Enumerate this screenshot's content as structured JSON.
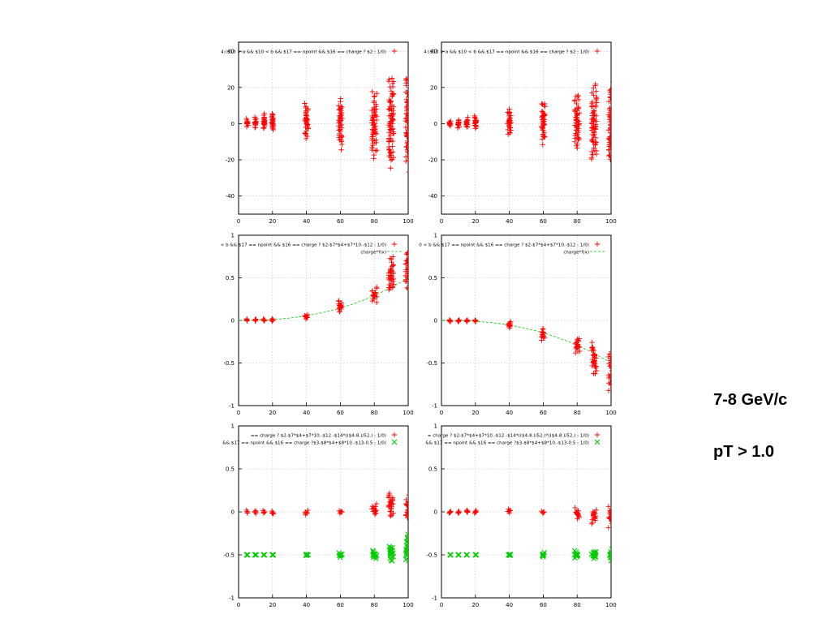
{
  "slide": {
    "energy_label": "7-8 GeV/c",
    "cut_label": "pT > 1.0"
  },
  "colors": {
    "series_red": "#ff0000",
    "series_green": "#00cc00",
    "grid": "#bbbbbb"
  },
  "chart_data": [
    {
      "type": "scatter",
      "row": 0,
      "col": 0,
      "xlim": [
        0,
        100
      ],
      "ylim": [
        -50,
        45
      ],
      "xticks": [
        0,
        20,
        40,
        60,
        80,
        100
      ],
      "yticks": [
        -40,
        -20,
        0,
        20,
        40
      ],
      "legend": [
        {
          "text": "4:($10 > a && $10 < b && $17 == npoint && $16 == charge ? $2 : 1/0)",
          "marker": "plus",
          "color": "red"
        }
      ],
      "series": [
        {
          "marker": "plus",
          "color": "red",
          "columns": [
            {
              "x": 5,
              "min": -2,
              "max": 3
            },
            {
              "x": 10,
              "min": -3,
              "max": 4
            },
            {
              "x": 15,
              "min": -4,
              "max": 6
            },
            {
              "x": 20,
              "min": -5,
              "max": 7
            },
            {
              "x": 40,
              "min": -10,
              "max": 12
            },
            {
              "x": 60,
              "min": -15,
              "max": 15
            },
            {
              "x": 80,
              "min": -20,
              "max": 18
            },
            {
              "x": 90,
              "min": -25,
              "max": 27
            },
            {
              "x": 100,
              "min": -27,
              "max": 30
            }
          ]
        }
      ]
    },
    {
      "type": "scatter",
      "row": 0,
      "col": 1,
      "xlim": [
        0,
        100
      ],
      "ylim": [
        -50,
        45
      ],
      "xticks": [
        0,
        20,
        40,
        60,
        80,
        100
      ],
      "yticks": [
        -40,
        -20,
        0,
        20,
        40
      ],
      "legend": [
        {
          "text": "4:($10 > a && $10 < b && $17 == npoint && $16 == charge ? $2 : 1/0)",
          "marker": "plus",
          "color": "red"
        }
      ],
      "series": [
        {
          "marker": "plus",
          "color": "red",
          "columns": [
            {
              "x": 5,
              "min": -2,
              "max": 2
            },
            {
              "x": 10,
              "min": -3,
              "max": 3
            },
            {
              "x": 15,
              "min": -3,
              "max": 4
            },
            {
              "x": 20,
              "min": -4,
              "max": 5
            },
            {
              "x": 40,
              "min": -8,
              "max": 10
            },
            {
              "x": 60,
              "min": -12,
              "max": 14
            },
            {
              "x": 80,
              "min": -15,
              "max": 18
            },
            {
              "x": 90,
              "min": -22,
              "max": 22
            },
            {
              "x": 100,
              "min": -25,
              "max": 25
            }
          ]
        }
      ]
    },
    {
      "type": "scatter",
      "row": 1,
      "col": 0,
      "xlim": [
        0,
        100
      ],
      "ylim": [
        -1,
        1
      ],
      "xticks": [
        0,
        20,
        40,
        60,
        80,
        100
      ],
      "yticks": [
        -1,
        -0.5,
        0,
        0.5,
        1
      ],
      "legend": [
        {
          "text": "< b && $17 == npoint && $16 == charge ? $2-$7*$4+$7*10.-$12 : 1/0)",
          "marker": "plus",
          "color": "red"
        },
        {
          "text": "charge*f(x)",
          "marker": "line",
          "color": "green"
        }
      ],
      "series": [
        {
          "marker": "plus",
          "color": "red",
          "columns": [
            {
              "x": 5,
              "min": -0.01,
              "max": 0.02
            },
            {
              "x": 10,
              "min": -0.01,
              "max": 0.02
            },
            {
              "x": 15,
              "min": -0.01,
              "max": 0.02
            },
            {
              "x": 20,
              "min": -0.01,
              "max": 0.02
            },
            {
              "x": 40,
              "min": 0.01,
              "max": 0.08
            },
            {
              "x": 60,
              "min": 0.08,
              "max": 0.25
            },
            {
              "x": 80,
              "min": 0.2,
              "max": 0.4
            },
            {
              "x": 90,
              "min": 0.3,
              "max": 0.75
            },
            {
              "x": 100,
              "min": 0.35,
              "max": 0.9
            }
          ]
        }
      ],
      "curve": {
        "color": "green",
        "scale": 0.5
      }
    },
    {
      "type": "scatter",
      "row": 1,
      "col": 1,
      "xlim": [
        0,
        100
      ],
      "ylim": [
        -1,
        1
      ],
      "xticks": [
        0,
        20,
        40,
        60,
        80,
        100
      ],
      "yticks": [
        -1,
        -0.5,
        0,
        0.5,
        1
      ],
      "legend": [
        {
          "text": "0 < b && $17 == npoint && $16 == charge ? $2-$7*$4+$7*10.-$12 : 1/0)",
          "marker": "plus",
          "color": "red"
        },
        {
          "text": "charge*f(x)",
          "marker": "line",
          "color": "green"
        }
      ],
      "series": [
        {
          "marker": "plus",
          "color": "red",
          "columns": [
            {
              "x": 5,
              "min": -0.02,
              "max": 0.01
            },
            {
              "x": 10,
              "min": -0.02,
              "max": 0.01
            },
            {
              "x": 15,
              "min": -0.02,
              "max": 0.01
            },
            {
              "x": 20,
              "min": -0.02,
              "max": 0.01
            },
            {
              "x": 40,
              "min": -0.1,
              "max": 0.0
            },
            {
              "x": 60,
              "min": -0.25,
              "max": -0.08
            },
            {
              "x": 80,
              "min": -0.4,
              "max": -0.18
            },
            {
              "x": 90,
              "min": -0.65,
              "max": -0.25
            },
            {
              "x": 100,
              "min": -0.85,
              "max": -0.3
            }
          ]
        }
      ],
      "curve": {
        "color": "green",
        "scale": -0.5
      }
    },
    {
      "type": "scatter",
      "row": 2,
      "col": 0,
      "xlim": [
        0,
        100
      ],
      "ylim": [
        -1,
        1
      ],
      "xticks": [
        0,
        20,
        40,
        60,
        80,
        100
      ],
      "yticks": [
        -1,
        -0.5,
        0,
        0.5,
        1
      ],
      "legend": [
        {
          "text": "== charge ? $2-$7*$4+$7*10.-$12 -$14*(($4-8.)/52.) : 1/0)",
          "marker": "plus",
          "color": "red"
        },
        {
          "text": "&& $17 == npoint && $16 == charge ?$3-$8*$4+$8*10.-$13-0.5 : 1/0)",
          "marker": "cross",
          "color": "green"
        }
      ],
      "series": [
        {
          "marker": "plus",
          "color": "red",
          "columns": [
            {
              "x": 5,
              "min": -0.02,
              "max": 0.02
            },
            {
              "x": 10,
              "min": -0.02,
              "max": 0.02
            },
            {
              "x": 15,
              "min": -0.02,
              "max": 0.02
            },
            {
              "x": 20,
              "min": -0.03,
              "max": 0.01
            },
            {
              "x": 40,
              "min": -0.04,
              "max": 0.02
            },
            {
              "x": 60,
              "min": -0.02,
              "max": 0.02
            },
            {
              "x": 80,
              "min": -0.05,
              "max": 0.1
            },
            {
              "x": 90,
              "min": -0.08,
              "max": 0.25
            },
            {
              "x": 100,
              "min": -0.12,
              "max": 0.2
            }
          ]
        },
        {
          "marker": "cross",
          "color": "green",
          "columns": [
            {
              "x": 5,
              "min": -0.5,
              "max": -0.5
            },
            {
              "x": 10,
              "min": -0.5,
              "max": -0.5
            },
            {
              "x": 15,
              "min": -0.5,
              "max": -0.5
            },
            {
              "x": 20,
              "min": -0.5,
              "max": -0.5
            },
            {
              "x": 40,
              "min": -0.51,
              "max": -0.49
            },
            {
              "x": 60,
              "min": -0.53,
              "max": -0.47
            },
            {
              "x": 80,
              "min": -0.56,
              "max": -0.45
            },
            {
              "x": 90,
              "min": -0.58,
              "max": -0.38
            },
            {
              "x": 100,
              "min": -0.58,
              "max": -0.25
            }
          ]
        }
      ]
    },
    {
      "type": "scatter",
      "row": 2,
      "col": 1,
      "xlim": [
        0,
        100
      ],
      "ylim": [
        -1,
        1
      ],
      "xticks": [
        0,
        20,
        40,
        60,
        80,
        100
      ],
      "yticks": [
        -1,
        -0.5,
        0,
        0.5,
        1
      ],
      "legend": [
        {
          "text": "= charge ? $2-$7*$4+$7*10.-$12 -$14*(($4-8.)/52.)*(($4-8.)/52.) : 1/0)",
          "marker": "plus",
          "color": "red"
        },
        {
          "text": "&& $17 == npoint && $16 == charge ?$3-$8*$4+$8*10.-$13-0.5 : 1/0)",
          "marker": "cross",
          "color": "green"
        }
      ],
      "series": [
        {
          "marker": "plus",
          "color": "red",
          "columns": [
            {
              "x": 5,
              "min": -0.02,
              "max": 0.01
            },
            {
              "x": 10,
              "min": -0.02,
              "max": 0.01
            },
            {
              "x": 15,
              "min": -0.01,
              "max": 0.02
            },
            {
              "x": 20,
              "min": -0.02,
              "max": 0.02
            },
            {
              "x": 40,
              "min": -0.02,
              "max": 0.04
            },
            {
              "x": 60,
              "min": -0.02,
              "max": 0.01
            },
            {
              "x": 80,
              "min": -0.1,
              "max": 0.05
            },
            {
              "x": 90,
              "min": -0.15,
              "max": 0.05
            },
            {
              "x": 100,
              "min": -0.2,
              "max": 0.08
            }
          ]
        },
        {
          "marker": "cross",
          "color": "green",
          "columns": [
            {
              "x": 5,
              "min": -0.5,
              "max": -0.5
            },
            {
              "x": 10,
              "min": -0.5,
              "max": -0.5
            },
            {
              "x": 15,
              "min": -0.5,
              "max": -0.5
            },
            {
              "x": 20,
              "min": -0.5,
              "max": -0.5
            },
            {
              "x": 40,
              "min": -0.51,
              "max": -0.49
            },
            {
              "x": 60,
              "min": -0.53,
              "max": -0.47
            },
            {
              "x": 80,
              "min": -0.55,
              "max": -0.45
            },
            {
              "x": 90,
              "min": -0.56,
              "max": -0.44
            },
            {
              "x": 100,
              "min": -0.58,
              "max": -0.42
            }
          ]
        }
      ]
    }
  ]
}
